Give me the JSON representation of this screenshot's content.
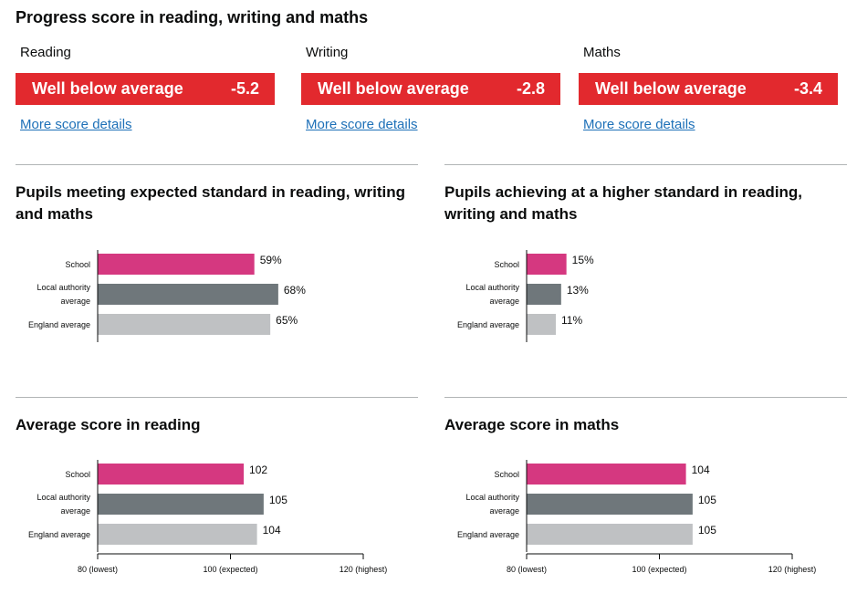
{
  "page_title": "Progress score in reading, writing and maths",
  "progress_scores": [
    {
      "subject": "Reading",
      "band": "Well below average",
      "score": "-5.2",
      "link": "More score details"
    },
    {
      "subject": "Writing",
      "band": "Well below average",
      "score": "-2.8",
      "link": "More score details"
    },
    {
      "subject": "Maths",
      "band": "Well below average",
      "score": "-3.4",
      "link": "More score details"
    }
  ],
  "colors": {
    "school": "#d53880",
    "local_authority": "#6f777b",
    "england": "#bfc1c3",
    "band_red": "#e2292e",
    "link": "#1d70b8"
  },
  "chart_data": [
    {
      "type": "bar",
      "title": "Pupils meeting expected standard in reading, writing and maths",
      "categories": [
        "School",
        "Local authority average",
        "England average"
      ],
      "values": [
        59,
        68,
        65
      ],
      "value_labels": [
        "59%",
        "68%",
        "65%"
      ],
      "xlim": [
        0,
        100
      ]
    },
    {
      "type": "bar",
      "title": "Pupils achieving at a higher standard in reading, writing and maths",
      "categories": [
        "School",
        "Local authority average",
        "England average"
      ],
      "values": [
        15,
        13,
        11
      ],
      "value_labels": [
        "15%",
        "13%",
        "11%"
      ],
      "xlim": [
        0,
        100
      ]
    },
    {
      "type": "bar",
      "title": "Average score in reading",
      "categories": [
        "School",
        "Local authority average",
        "England average"
      ],
      "values": [
        102,
        105,
        104
      ],
      "value_labels": [
        "102",
        "105",
        "104"
      ],
      "xlim": [
        80,
        120
      ],
      "xticks": [
        80,
        100,
        120
      ],
      "xtick_labels": [
        "80 (lowest)",
        "100 (expected)",
        "120 (highest)"
      ]
    },
    {
      "type": "bar",
      "title": "Average score in maths",
      "categories": [
        "School",
        "Local authority average",
        "England average"
      ],
      "values": [
        104,
        105,
        105
      ],
      "value_labels": [
        "104",
        "105",
        "105"
      ],
      "xlim": [
        80,
        120
      ],
      "xticks": [
        80,
        100,
        120
      ],
      "xtick_labels": [
        "80 (lowest)",
        "100 (expected)",
        "120 (highest)"
      ]
    }
  ]
}
